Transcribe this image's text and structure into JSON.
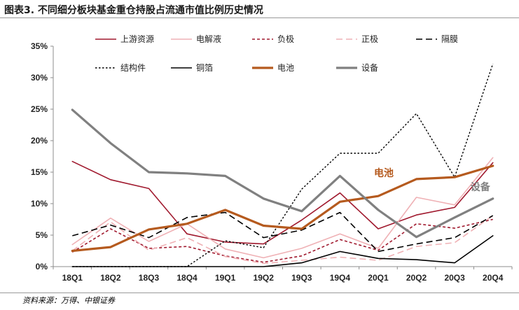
{
  "figure": {
    "title": "图表3. 不同细分板块基金重仓持股占流通市值比例历史情况",
    "source": "资料来源：万得、中银证券"
  },
  "chart_data": {
    "type": "line",
    "categories": [
      "18Q1",
      "18Q2",
      "18Q3",
      "18Q4",
      "19Q1",
      "19Q2",
      "19Q3",
      "19Q4",
      "20Q1",
      "20Q2",
      "20Q3",
      "20Q4"
    ],
    "ylim": [
      0,
      35
    ],
    "yticks": [
      0,
      5,
      10,
      15,
      20,
      25,
      30,
      35
    ],
    "ytick_labels": [
      "0%",
      "5%",
      "10%",
      "15%",
      "20%",
      "25%",
      "30%",
      "35%"
    ],
    "grid": false,
    "legend_position": "top",
    "series": [
      {
        "name": "上游资源",
        "color": "#a0192e",
        "dash": "solid",
        "width": 1.6,
        "values": [
          16.7,
          13.8,
          12.4,
          5.2,
          3.9,
          3.6,
          7.4,
          11.7,
          6.0,
          8.2,
          9.4,
          16.5
        ]
      },
      {
        "name": "电解液",
        "color": "#efb1b5",
        "dash": "solid",
        "width": 1.6,
        "values": [
          3.5,
          7.7,
          4.0,
          6.8,
          2.8,
          1.4,
          2.9,
          5.2,
          2.9,
          11.0,
          9.8,
          17.3
        ]
      },
      {
        "name": "负极",
        "color": "#a0192e",
        "dash": "short",
        "width": 1.6,
        "values": [
          2.3,
          6.0,
          2.9,
          3.2,
          1.7,
          0.7,
          1.7,
          4.3,
          2.6,
          6.8,
          6.1,
          7.5
        ]
      },
      {
        "name": "正极",
        "color": "#efb1b5",
        "dash": "long",
        "width": 1.6,
        "values": [
          2.5,
          7.1,
          2.6,
          4.6,
          1.6,
          0.5,
          1.0,
          1.5,
          1.0,
          3.2,
          3.8,
          8.1
        ]
      },
      {
        "name": "隔膜",
        "color": "#000000",
        "dash": "long",
        "width": 1.6,
        "values": [
          4.9,
          6.6,
          4.6,
          7.8,
          8.6,
          4.6,
          5.8,
          8.6,
          2.4,
          3.6,
          4.6,
          8.1
        ]
      },
      {
        "name": "结构件",
        "color": "#000000",
        "dash": "dot",
        "width": 1.4,
        "values": [
          0,
          0,
          0,
          0,
          4.1,
          3.0,
          12.3,
          18.0,
          18.0,
          24.3,
          14.2,
          32.2
        ]
      },
      {
        "name": "铜箔",
        "color": "#000000",
        "dash": "solid",
        "width": 1.6,
        "values": [
          0,
          0,
          0,
          0,
          0,
          0,
          0.6,
          2.4,
          1.3,
          1.1,
          0.6,
          4.9
        ]
      },
      {
        "name": "电池",
        "color": "#b55a1e",
        "dash": "solid",
        "width": 3.2,
        "values": [
          2.5,
          3.1,
          5.9,
          6.8,
          9.0,
          6.5,
          6.0,
          10.3,
          11.2,
          13.9,
          14.2,
          16.0
        ]
      },
      {
        "name": "设备",
        "color": "#808080",
        "dash": "solid",
        "width": 3.2,
        "values": [
          24.9,
          19.6,
          15.0,
          14.8,
          14.4,
          10.8,
          8.8,
          14.4,
          9.0,
          4.7,
          7.8,
          10.8
        ]
      }
    ],
    "annotations": [
      {
        "text": "电池",
        "series": "电池",
        "color": "#b55a1e"
      },
      {
        "text": "设备",
        "series": "设备",
        "color": "#808080"
      }
    ]
  }
}
